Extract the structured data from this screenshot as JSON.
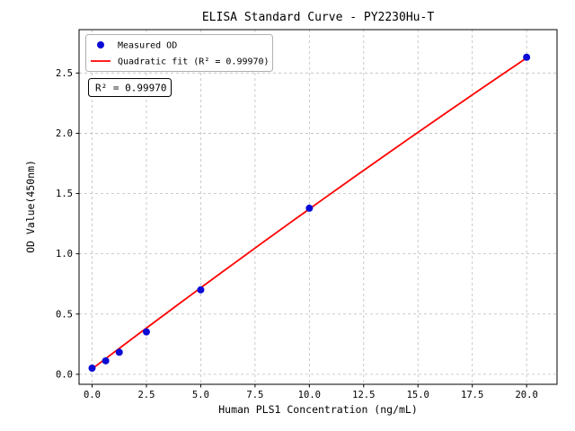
{
  "chart_data": {
    "type": "scatter",
    "title": "ELISA Standard Curve - PY2230Hu-T",
    "xlabel": "Human PLS1 Concentration (ng/mL)",
    "ylabel": "OD Value(450nm)",
    "xlim": [
      -0.6,
      21.4
    ],
    "ylim": [
      -0.083,
      2.86
    ],
    "xticks": [
      0.0,
      2.5,
      5.0,
      7.5,
      10.0,
      12.5,
      15.0,
      17.5,
      20.0
    ],
    "xtick_labels": [
      "0.0",
      "2.5",
      "5.0",
      "7.5",
      "10.0",
      "12.5",
      "15.0",
      "17.5",
      "20.0"
    ],
    "yticks": [
      0.0,
      0.5,
      1.0,
      1.5,
      2.0,
      2.5
    ],
    "ytick_labels": [
      "0.0",
      "0.5",
      "1.0",
      "1.5",
      "2.0",
      "2.5"
    ],
    "grid": true,
    "legend_position": "upper left",
    "series": [
      {
        "name": "Measured OD",
        "type": "scatter",
        "color": "#0b0bd6",
        "x": [
          0,
          0.625,
          1.25,
          2.5,
          5,
          10,
          20
        ],
        "y": [
          0.051,
          0.112,
          0.183,
          0.352,
          0.701,
          1.378,
          2.631
        ]
      },
      {
        "name": "Quadratic fit (R² = 0.99970)",
        "type": "line",
        "color": "#ff0000"
      }
    ],
    "fit": {
      "a": 0.045,
      "b": 0.1364,
      "c": -0.00037,
      "x_range": [
        0,
        20
      ]
    },
    "annotation": "R² = 0.99970",
    "r_squared": 0.9997
  }
}
